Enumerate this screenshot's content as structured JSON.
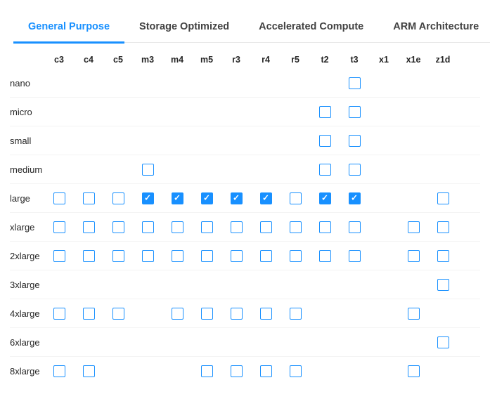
{
  "colors": {
    "accent": "#1890ff"
  },
  "tabs": [
    {
      "label": "General Purpose",
      "active": true
    },
    {
      "label": "Storage Optimized",
      "active": false
    },
    {
      "label": "Accelerated Compute",
      "active": false
    },
    {
      "label": "ARM Architecture",
      "active": false
    }
  ],
  "matrix": {
    "columns": [
      "c3",
      "c4",
      "c5",
      "m3",
      "m4",
      "m5",
      "r3",
      "r4",
      "r5",
      "t2",
      "t3",
      "x1",
      "x1e",
      "z1d"
    ],
    "rows": [
      {
        "label": "nano",
        "cells": {
          "t3": "unchecked"
        }
      },
      {
        "label": "micro",
        "cells": {
          "t2": "unchecked",
          "t3": "unchecked"
        }
      },
      {
        "label": "small",
        "cells": {
          "t2": "unchecked",
          "t3": "unchecked"
        }
      },
      {
        "label": "medium",
        "cells": {
          "m3": "unchecked",
          "t2": "unchecked",
          "t3": "unchecked"
        }
      },
      {
        "label": "large",
        "cells": {
          "c3": "unchecked",
          "c4": "unchecked",
          "c5": "unchecked",
          "m3": "checked",
          "m4": "checked",
          "m5": "checked",
          "r3": "checked",
          "r4": "checked",
          "r5": "unchecked",
          "t2": "checked",
          "t3": "checked",
          "z1d": "unchecked"
        }
      },
      {
        "label": "xlarge",
        "cells": {
          "c3": "unchecked",
          "c4": "unchecked",
          "c5": "unchecked",
          "m3": "unchecked",
          "m4": "unchecked",
          "m5": "unchecked",
          "r3": "unchecked",
          "r4": "unchecked",
          "r5": "unchecked",
          "t2": "unchecked",
          "t3": "unchecked",
          "x1e": "unchecked",
          "z1d": "unchecked"
        }
      },
      {
        "label": "2xlarge",
        "cells": {
          "c3": "unchecked",
          "c4": "unchecked",
          "c5": "unchecked",
          "m3": "unchecked",
          "m4": "unchecked",
          "m5": "unchecked",
          "r3": "unchecked",
          "r4": "unchecked",
          "r5": "unchecked",
          "t2": "unchecked",
          "t3": "unchecked",
          "x1e": "unchecked",
          "z1d": "unchecked"
        }
      },
      {
        "label": "3xlarge",
        "cells": {
          "z1d": "unchecked"
        }
      },
      {
        "label": "4xlarge",
        "cells": {
          "c3": "unchecked",
          "c4": "unchecked",
          "c5": "unchecked",
          "m4": "unchecked",
          "m5": "unchecked",
          "r3": "unchecked",
          "r4": "unchecked",
          "r5": "unchecked",
          "x1e": "unchecked"
        }
      },
      {
        "label": "6xlarge",
        "cells": {
          "z1d": "unchecked"
        }
      },
      {
        "label": "8xlarge",
        "cells": {
          "c3": "unchecked",
          "c4": "unchecked",
          "m5": "unchecked",
          "r3": "unchecked",
          "r4": "unchecked",
          "r5": "unchecked",
          "x1e": "unchecked"
        }
      }
    ]
  },
  "icons": {
    "check": "✓"
  }
}
